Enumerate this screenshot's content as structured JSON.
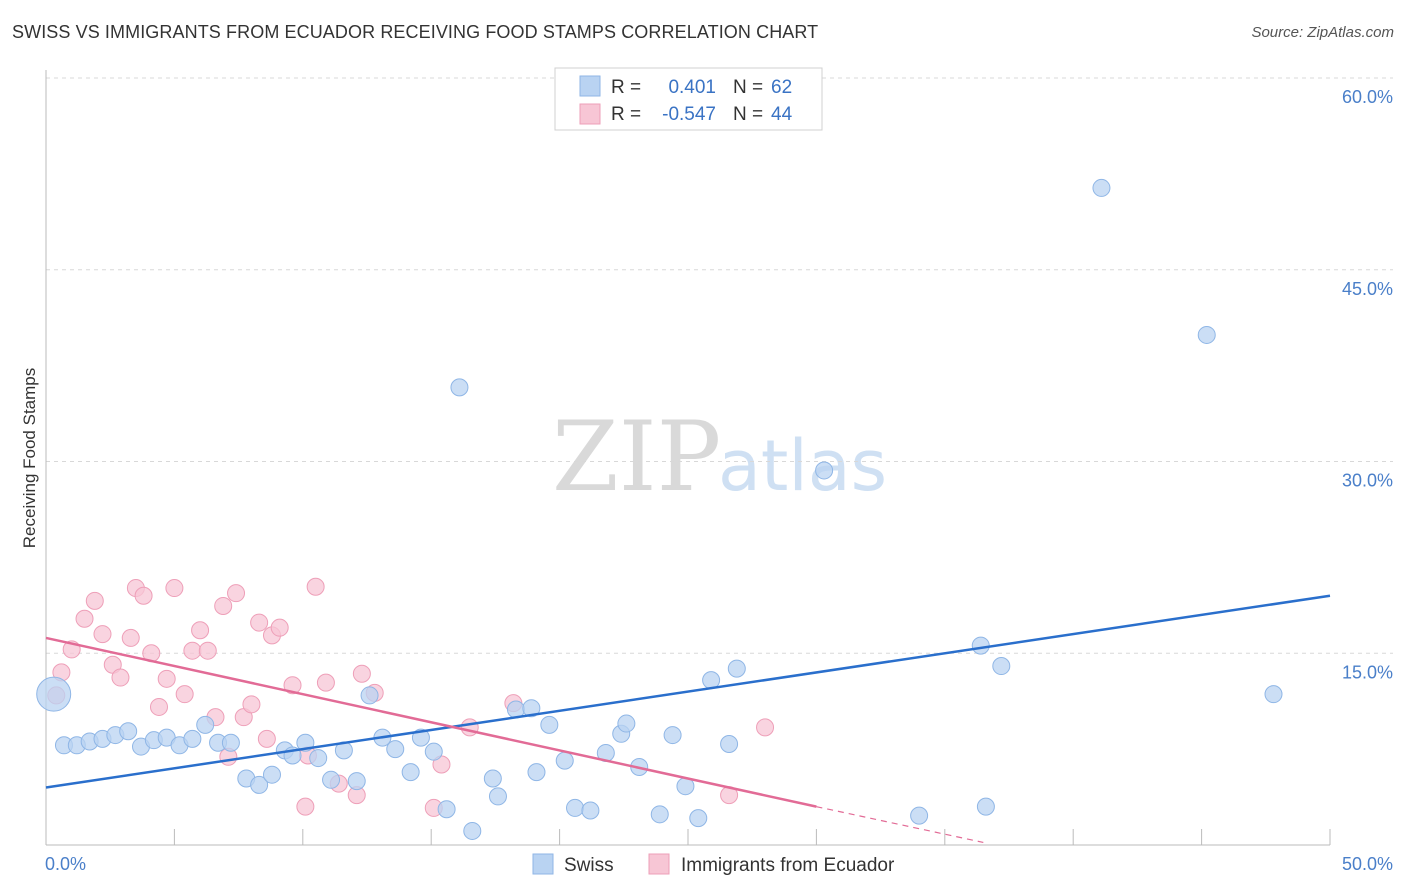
{
  "header": {
    "title": "SWISS VS IMMIGRANTS FROM ECUADOR RECEIVING FOOD STAMPS CORRELATION CHART",
    "source": "Source: ZipAtlas.com"
  },
  "watermark": {
    "zip": "ZIP",
    "atlas": "atlas"
  },
  "colors": {
    "swiss_fill": "#b9d3f2",
    "swiss_stroke": "#8fb6e6",
    "swiss_line": "#2a6fcc",
    "ecuador_fill": "#f7c6d5",
    "ecuador_stroke": "#ee9fb8",
    "ecuador_line": "#e26b96",
    "tick": "#4a7fc9",
    "grid": "#d8d8d8"
  },
  "legend": {
    "rows": [
      {
        "r_label": "R =",
        "r_value": "0.401",
        "n_label": "N =",
        "n_value": "62"
      },
      {
        "r_label": "R =",
        "r_value": "-0.547",
        "n_label": "N =",
        "n_value": "44"
      }
    ]
  },
  "chart_data": {
    "type": "scatter",
    "title": "SWISS VS IMMIGRANTS FROM ECUADOR RECEIVING FOOD STAMPS CORRELATION CHART",
    "xlabel": "",
    "ylabel": "Receiving Food Stamps",
    "xlim": [
      0,
      50
    ],
    "ylim": [
      0,
      60
    ],
    "x_tick_labels": [
      "0.0%",
      "50.0%"
    ],
    "y_ticks": [
      15,
      30,
      45,
      60
    ],
    "y_tick_labels": [
      "15.0%",
      "30.0%",
      "45.0%",
      "60.0%"
    ],
    "grid": true,
    "legend_position": "top-center",
    "series": [
      {
        "name": "Swiss",
        "r": 0.401,
        "n": 62,
        "trend": {
          "x": [
            0,
            50
          ],
          "y": [
            4.5,
            19.5
          ]
        },
        "points": [
          [
            0.3,
            11.8
          ],
          [
            0.7,
            7.8
          ],
          [
            1.2,
            7.8
          ],
          [
            1.7,
            8.1
          ],
          [
            2.2,
            8.3
          ],
          [
            2.7,
            8.6
          ],
          [
            3.2,
            8.9
          ],
          [
            3.7,
            7.7
          ],
          [
            4.2,
            8.2
          ],
          [
            4.7,
            8.4
          ],
          [
            5.2,
            7.8
          ],
          [
            5.7,
            8.3
          ],
          [
            6.2,
            9.4
          ],
          [
            6.7,
            8.0
          ],
          [
            7.2,
            8.0
          ],
          [
            7.8,
            5.2
          ],
          [
            8.3,
            4.7
          ],
          [
            8.8,
            5.5
          ],
          [
            9.3,
            7.4
          ],
          [
            9.6,
            7.0
          ],
          [
            10.1,
            8.0
          ],
          [
            10.6,
            6.8
          ],
          [
            11.1,
            5.1
          ],
          [
            11.6,
            7.4
          ],
          [
            12.1,
            5.0
          ],
          [
            12.6,
            11.7
          ],
          [
            13.1,
            8.4
          ],
          [
            13.6,
            7.5
          ],
          [
            14.2,
            5.7
          ],
          [
            14.6,
            8.4
          ],
          [
            15.1,
            7.3
          ],
          [
            15.6,
            2.8
          ],
          [
            16.1,
            35.8
          ],
          [
            16.6,
            1.1
          ],
          [
            17.4,
            5.2
          ],
          [
            17.6,
            3.8
          ],
          [
            18.3,
            10.6
          ],
          [
            18.9,
            10.7
          ],
          [
            19.1,
            5.7
          ],
          [
            19.6,
            9.4
          ],
          [
            20.2,
            6.6
          ],
          [
            20.6,
            2.9
          ],
          [
            21.2,
            2.7
          ],
          [
            21.8,
            7.2
          ],
          [
            22.4,
            8.7
          ],
          [
            22.6,
            9.5
          ],
          [
            23.1,
            6.1
          ],
          [
            23.9,
            2.4
          ],
          [
            24.4,
            8.6
          ],
          [
            24.9,
            4.6
          ],
          [
            25.4,
            2.1
          ],
          [
            25.9,
            12.9
          ],
          [
            26.6,
            7.9
          ],
          [
            26.9,
            13.8
          ],
          [
            30.3,
            29.3
          ],
          [
            34.0,
            2.3
          ],
          [
            36.4,
            15.6
          ],
          [
            36.6,
            3.0
          ],
          [
            37.2,
            14.0
          ],
          [
            41.1,
            51.4
          ],
          [
            45.2,
            39.9
          ],
          [
            47.8,
            11.8
          ]
        ]
      },
      {
        "name": "Immigrants from Ecuador",
        "r": -0.547,
        "n": 44,
        "trend": {
          "x": [
            0,
            30
          ],
          "y": [
            16.2,
            3.0
          ]
        },
        "trend_dashed": {
          "x": [
            30,
            36.5
          ],
          "y": [
            3.0,
            0.2
          ]
        },
        "points": [
          [
            0.4,
            11.7
          ],
          [
            0.6,
            13.5
          ],
          [
            1.0,
            15.3
          ],
          [
            1.5,
            17.7
          ],
          [
            1.9,
            19.1
          ],
          [
            2.2,
            16.5
          ],
          [
            2.6,
            14.1
          ],
          [
            2.9,
            13.1
          ],
          [
            3.3,
            16.2
          ],
          [
            3.5,
            20.1
          ],
          [
            3.8,
            19.5
          ],
          [
            4.1,
            15.0
          ],
          [
            4.4,
            10.8
          ],
          [
            4.7,
            13.0
          ],
          [
            5.0,
            20.1
          ],
          [
            5.4,
            11.8
          ],
          [
            5.7,
            15.2
          ],
          [
            6.0,
            16.8
          ],
          [
            6.3,
            15.2
          ],
          [
            6.6,
            10.0
          ],
          [
            6.9,
            18.7
          ],
          [
            7.1,
            6.9
          ],
          [
            7.4,
            19.7
          ],
          [
            7.7,
            10.0
          ],
          [
            8.0,
            11.0
          ],
          [
            8.3,
            17.4
          ],
          [
            8.6,
            8.3
          ],
          [
            8.8,
            16.4
          ],
          [
            9.1,
            17.0
          ],
          [
            9.6,
            12.5
          ],
          [
            10.1,
            3.0
          ],
          [
            10.2,
            7.0
          ],
          [
            10.5,
            20.2
          ],
          [
            10.9,
            12.7
          ],
          [
            11.4,
            4.8
          ],
          [
            12.1,
            3.9
          ],
          [
            12.3,
            13.4
          ],
          [
            12.8,
            11.9
          ],
          [
            15.1,
            2.9
          ],
          [
            15.4,
            6.3
          ],
          [
            16.5,
            9.2
          ],
          [
            18.2,
            11.1
          ],
          [
            26.6,
            3.9
          ],
          [
            28.0,
            9.2
          ]
        ]
      }
    ]
  },
  "bottom_legend": {
    "items": [
      "Swiss",
      "Immigrants from Ecuador"
    ]
  }
}
